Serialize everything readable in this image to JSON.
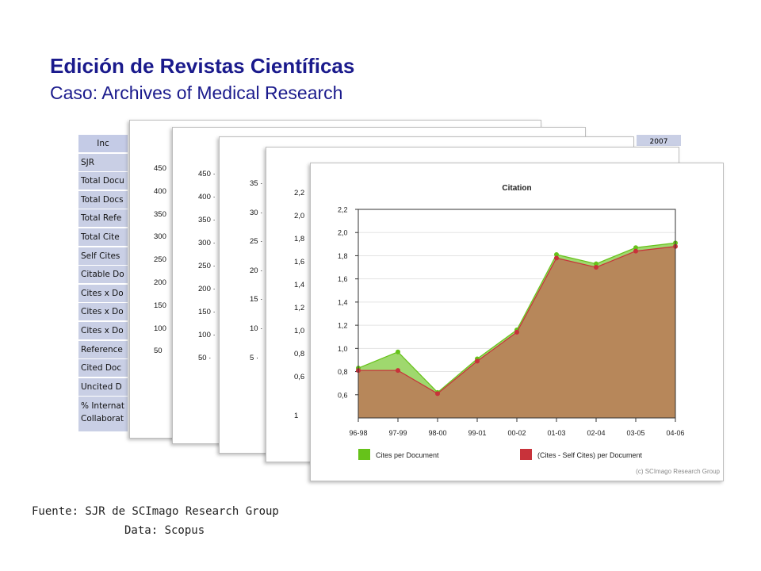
{
  "header": {
    "title": "Edición de Revistas Científicas",
    "subtitle": "Caso: Archives of Medical Research"
  },
  "table": {
    "header_label": "Inc",
    "year_label": "2007",
    "rows": [
      "SJR",
      "Total Docu",
      "Total Docs",
      "Total Refe",
      "Total Cite",
      "Self Cites",
      "Citable Do",
      "Cites x Do",
      "Cites x Do",
      "Cites x Do",
      "Reference",
      "Cited Doc",
      "Uncited D"
    ],
    "last_row": "% Internat Collaborat"
  },
  "back_panels": [
    {
      "ticks": [
        "450",
        "400",
        "350",
        "300",
        "250",
        "200",
        "150",
        "100",
        "50"
      ]
    },
    {
      "ticks": [
        "450 ·",
        "400 ·",
        "350 ·",
        "300 ·",
        "250 ·",
        "200 ·",
        "150 ·",
        "100 ·",
        "50 ·"
      ]
    },
    {
      "ticks": [
        "35 ·",
        "30 ·",
        "25 ·",
        "20 ·",
        "15 ·",
        "10 ·",
        "5 ·"
      ]
    },
    {
      "ticks": [
        "2,2",
        "2,0",
        "1,8",
        "1,6",
        "1,4",
        "1,2",
        "1,0",
        "0,8",
        "0,6",
        "1"
      ]
    }
  ],
  "chart_data": {
    "type": "area",
    "title": "Citation",
    "categories": [
      "96-98",
      "97-99",
      "98-00",
      "99-01",
      "00-02",
      "01-03",
      "02-04",
      "03-05",
      "04-06"
    ],
    "y_ticks": [
      "2,2",
      "2,0",
      "1,8",
      "1,6",
      "1,4",
      "1,2",
      "1,0",
      "0,8",
      "0,6"
    ],
    "ylim": [
      0.4,
      2.2
    ],
    "series": [
      {
        "name": "Cites per Document",
        "color": "#66c21a",
        "fill": "#9fd86e",
        "values": [
          0.83,
          0.97,
          0.62,
          0.91,
          1.16,
          1.81,
          1.73,
          1.87,
          1.91
        ]
      },
      {
        "name": "(Cites - Self Cites) per Document",
        "color": "#c8323a",
        "fill": "#b7875a",
        "values": [
          0.81,
          0.81,
          0.61,
          0.89,
          1.14,
          1.78,
          1.7,
          1.84,
          1.88
        ]
      }
    ],
    "credit": "(c) SCImago Research Group"
  },
  "footer": {
    "source": "Fuente: SJR de SCImago Research Group",
    "data": "Data: Scopus"
  }
}
